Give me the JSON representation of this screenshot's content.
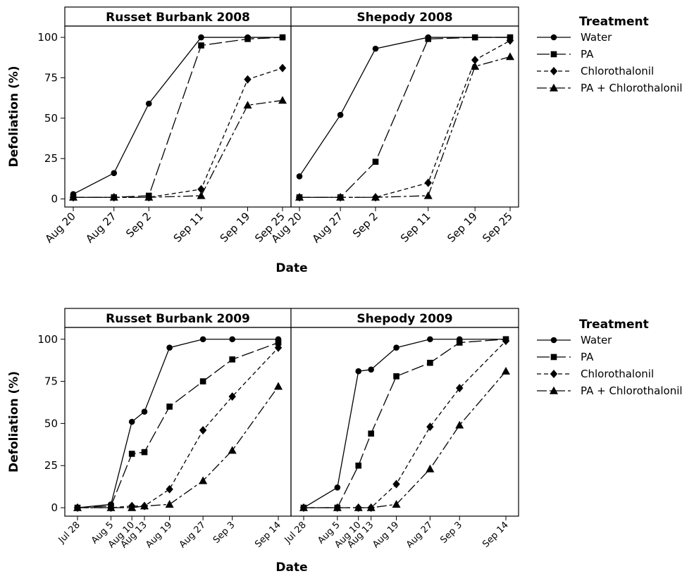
{
  "legend": {
    "title": "Treatment",
    "entries": [
      {
        "label": "Water",
        "marker": "circle",
        "dash": ""
      },
      {
        "label": "PA",
        "marker": "square",
        "dash": "18,5"
      },
      {
        "label": "Chlorothalonil",
        "marker": "diamond",
        "dash": "6,4"
      },
      {
        "label": "PA + Chlorothalonil",
        "marker": "triangle",
        "dash": "14,4,4,4"
      }
    ]
  },
  "chart_data": [
    {
      "type": "line",
      "xlabel": "Date",
      "ylabel": "Defoliation (%)",
      "ylim": [
        -5,
        107
      ],
      "yticks": [
        0,
        25,
        50,
        75,
        100
      ],
      "x_ticks": [
        {
          "label": "Aug 20",
          "day": 0
        },
        {
          "label": "Aug 27",
          "day": 7
        },
        {
          "label": "Sep 2",
          "day": 13
        },
        {
          "label": "Sep 11",
          "day": 22
        },
        {
          "label": "Sep 19",
          "day": 30
        },
        {
          "label": "Sep 25",
          "day": 36
        }
      ],
      "panels": [
        {
          "title": "Russet Burbank 2008",
          "series": [
            {
              "name": "Water",
              "values": [
                3,
                16,
                59,
                100,
                100,
                100
              ]
            },
            {
              "name": "PA",
              "values": [
                1,
                1,
                2,
                95,
                99,
                100
              ]
            },
            {
              "name": "Chlorothalonil",
              "values": [
                1,
                1,
                1,
                6,
                74,
                81
              ]
            },
            {
              "name": "PA + Chlorothalonil",
              "values": [
                1,
                1,
                1,
                2,
                58,
                61
              ]
            }
          ]
        },
        {
          "title": "Shepody 2008",
          "series": [
            {
              "name": "Water",
              "values": [
                14,
                52,
                93,
                100,
                100,
                100
              ]
            },
            {
              "name": "PA",
              "values": [
                1,
                1,
                23,
                99,
                100,
                100
              ]
            },
            {
              "name": "Chlorothalonil",
              "values": [
                1,
                1,
                1,
                10,
                86,
                98
              ]
            },
            {
              "name": "PA + Chlorothalonil",
              "values": [
                1,
                1,
                1,
                2,
                82,
                88
              ]
            }
          ]
        }
      ]
    },
    {
      "type": "line",
      "xlabel": "Date",
      "ylabel": "Defoliation (%)",
      "ylim": [
        -5,
        107
      ],
      "yticks": [
        0,
        25,
        50,
        75,
        100
      ],
      "x_ticks": [
        {
          "label": "Jul 28",
          "day": 0
        },
        {
          "label": "Aug 5",
          "day": 8
        },
        {
          "label": "Aug 10",
          "day": 13
        },
        {
          "label": "Aug 13",
          "day": 16
        },
        {
          "label": "Aug 19",
          "day": 22
        },
        {
          "label": "Aug 27",
          "day": 30
        },
        {
          "label": "Sep 3",
          "day": 37
        },
        {
          "label": "Sep 14",
          "day": 48
        }
      ],
      "panels": [
        {
          "title": "Russet Burbank 2009",
          "series": [
            {
              "name": "Water",
              "values": [
                0,
                2,
                51,
                57,
                95,
                100,
                100,
                100
              ]
            },
            {
              "name": "PA",
              "values": [
                0,
                1,
                32,
                33,
                60,
                75,
                88,
                98
              ]
            },
            {
              "name": "Chlorothalonil",
              "values": [
                0,
                0,
                1,
                1,
                11,
                46,
                66,
                95
              ]
            },
            {
              "name": "PA + Chlorothalonil",
              "values": [
                0,
                0,
                0,
                1,
                2,
                16,
                34,
                72
              ]
            }
          ]
        },
        {
          "title": "Shepody 2009",
          "series": [
            {
              "name": "Water",
              "values": [
                0,
                12,
                81,
                82,
                95,
                100,
                100,
                100
              ]
            },
            {
              "name": "PA",
              "values": [
                0,
                0,
                25,
                44,
                78,
                86,
                98,
                100
              ]
            },
            {
              "name": "Chlorothalonil",
              "values": [
                0,
                0,
                0,
                0,
                14,
                48,
                71,
                99
              ]
            },
            {
              "name": "PA + Chlorothalonil",
              "values": [
                0,
                0,
                0,
                0,
                2,
                23,
                49,
                81
              ]
            }
          ]
        }
      ]
    }
  ]
}
